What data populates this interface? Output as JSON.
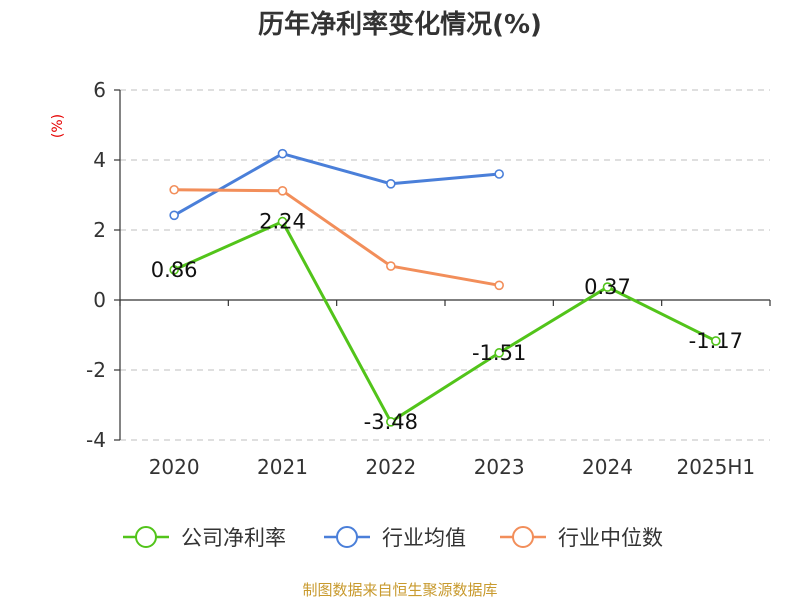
{
  "chart_data": {
    "type": "line",
    "title": "历年净利率变化情况(%)",
    "ylabel": "(%)",
    "xlabel": "",
    "categories": [
      "2020",
      "2021",
      "2022",
      "2023",
      "2024",
      "2025H1"
    ],
    "ylim": [
      -4,
      6
    ],
    "yticks": [
      -4,
      -2,
      0,
      2,
      4,
      6
    ],
    "grid": true,
    "legend_position": "bottom",
    "series": [
      {
        "name": "公司净利率",
        "color": "#52c41a",
        "values": [
          0.86,
          2.24,
          -3.48,
          -1.51,
          0.37,
          -1.17
        ],
        "labels": [
          "0.86",
          "2.24",
          "-3.48",
          "-1.51",
          "0.37",
          "-1.17"
        ]
      },
      {
        "name": "行业均值",
        "color": "#4a7fd9",
        "values": [
          2.42,
          4.18,
          3.32,
          3.6,
          null,
          null
        ]
      },
      {
        "name": "行业中位数",
        "color": "#f28e5a",
        "values": [
          3.15,
          3.12,
          0.97,
          0.42,
          null,
          null
        ]
      }
    ]
  },
  "footer": {
    "source": "制图数据来自恒生聚源数据库"
  }
}
